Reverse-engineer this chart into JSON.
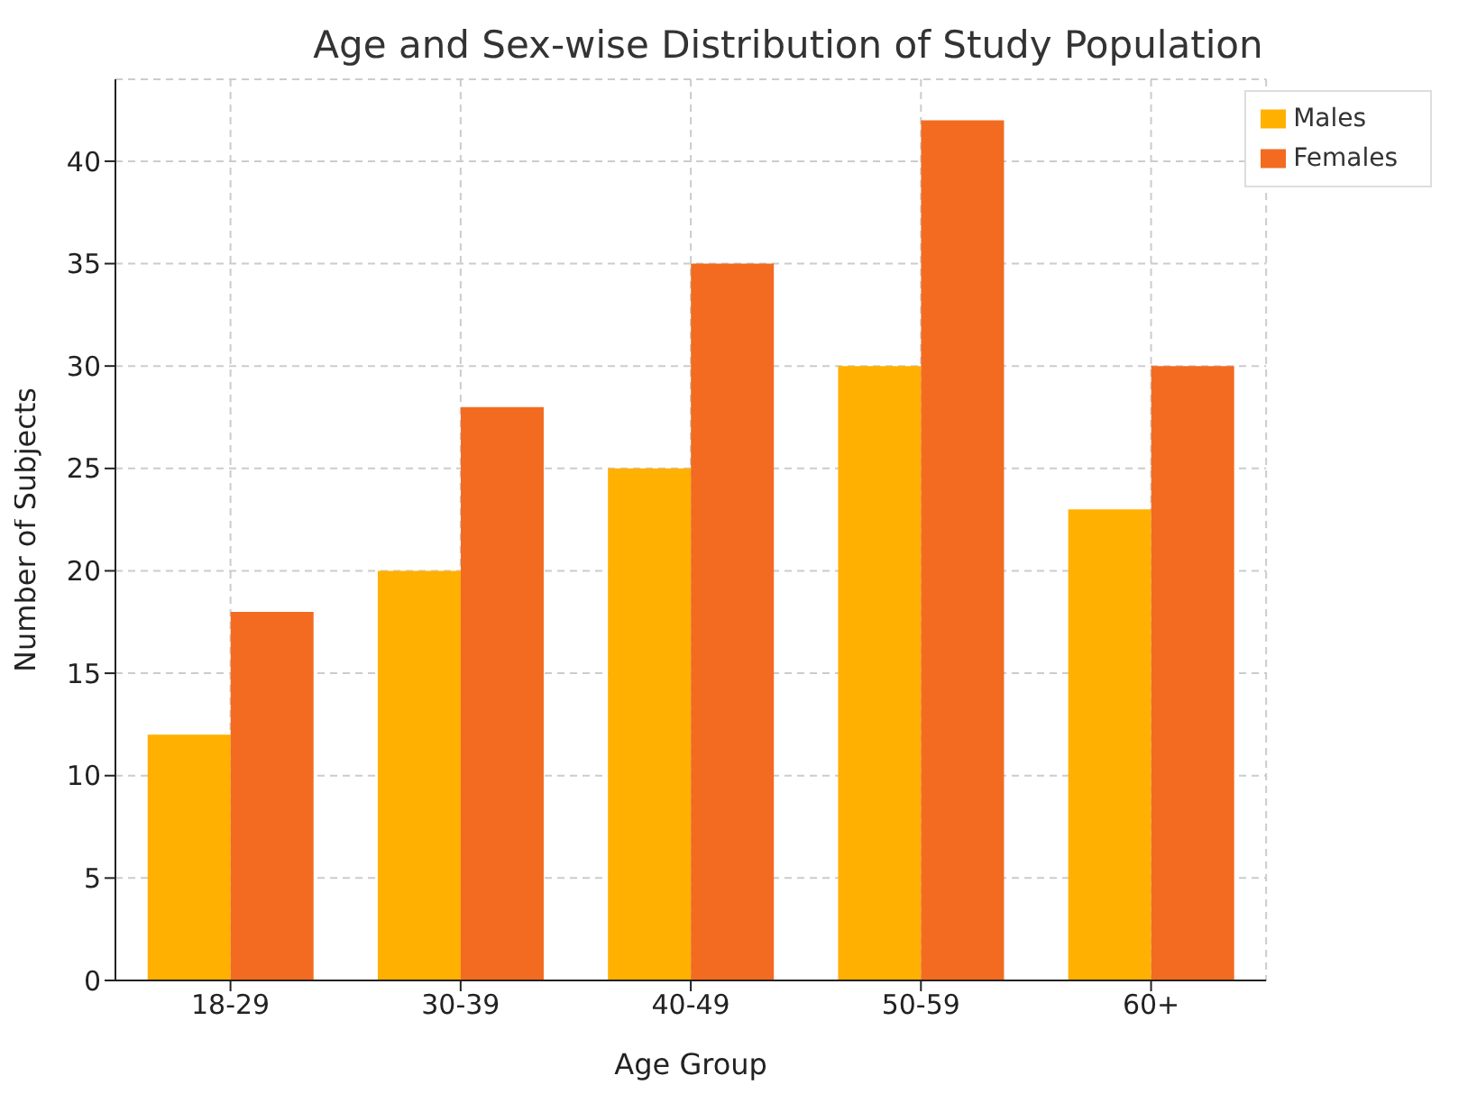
{
  "chart_data": {
    "type": "bar",
    "title": "Age and Sex-wise Distribution of Study Population",
    "xlabel": "Age Group",
    "ylabel": "Number of Subjects",
    "categories": [
      "18-29",
      "30-39",
      "40-49",
      "50-59",
      "60+"
    ],
    "series": [
      {
        "name": "Males",
        "color": "#ffb000",
        "values": [
          12,
          20,
          25,
          30,
          23
        ]
      },
      {
        "name": "Females",
        "color": "#f26b21",
        "values": [
          18,
          28,
          35,
          42,
          30
        ]
      }
    ],
    "ylim": [
      0,
      44
    ],
    "yticks": [
      0,
      5,
      10,
      15,
      20,
      25,
      30,
      35,
      40
    ],
    "grid": true,
    "legend": "top right"
  }
}
